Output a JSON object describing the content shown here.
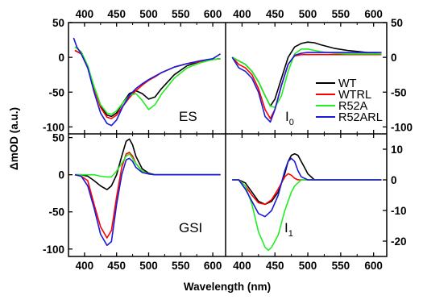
{
  "chart_data": {
    "type": "line",
    "xlabel": "Wavelength (nm)",
    "ylabel": "ΔmOD (a.u.)",
    "xlim": [
      375,
      620
    ],
    "x_ticks": [
      400,
      450,
      500,
      550,
      600
    ],
    "legend": {
      "placement": "inside panel I0, right",
      "entries": [
        "WT",
        "WTRL",
        "R52A",
        "R52ARL"
      ]
    },
    "series_colors": {
      "WT": "#000000",
      "WTRL": "#ff0000",
      "R52A": "#22ee22",
      "R52ARL": "#1a1ad8"
    },
    "panels": [
      {
        "id": "ES",
        "label": "ES",
        "position": "top-left",
        "ylim": [
          -110,
          50
        ],
        "y_ticks": [
          -100,
          -50,
          0,
          50
        ],
        "y_axis_side": "left",
        "series": [
          {
            "name": "WT",
            "x": [
              385,
              395,
              405,
              415,
              425,
              435,
              442,
              450,
              460,
              470,
              480,
              490,
              500,
              510,
              520,
              540,
              560,
              580,
              600,
              612
            ],
            "y": [
              10,
              5,
              -15,
              -45,
              -70,
              -83,
              -85,
              -80,
              -65,
              -52,
              -48,
              -52,
              -60,
              -57,
              -45,
              -25,
              -12,
              -6,
              -3,
              -2
            ]
          },
          {
            "name": "WTRL",
            "x": [
              385,
              395,
              405,
              415,
              425,
              435,
              442,
              450,
              460,
              470,
              480,
              490,
              500,
              510,
              520,
              540,
              560,
              580,
              600,
              612
            ],
            "y": [
              10,
              5,
              -15,
              -45,
              -72,
              -86,
              -88,
              -83,
              -70,
              -58,
              -48,
              -40,
              -33,
              -28,
              -22,
              -14,
              -9,
              -6,
              -3,
              -2
            ]
          },
          {
            "name": "R52A",
            "x": [
              385,
              395,
              405,
              415,
              425,
              435,
              442,
              450,
              460,
              470,
              480,
              490,
              500,
              510,
              520,
              540,
              560,
              580,
              600,
              612
            ],
            "y": [
              15,
              8,
              -12,
              -42,
              -68,
              -80,
              -82,
              -77,
              -65,
              -55,
              -52,
              -62,
              -75,
              -68,
              -53,
              -30,
              -15,
              -8,
              -3,
              -2
            ]
          },
          {
            "name": "R52ARL",
            "x": [
              383,
              388,
              395,
              405,
              415,
              425,
              435,
              442,
              450,
              460,
              470,
              480,
              490,
              500,
              510,
              520,
              540,
              560,
              580,
              600,
              612
            ],
            "y": [
              28,
              15,
              5,
              -15,
              -50,
              -80,
              -95,
              -98,
              -90,
              -70,
              -55,
              -45,
              -38,
              -32,
              -27,
              -22,
              -14,
              -9,
              -5,
              -2,
              5
            ]
          }
        ]
      },
      {
        "id": "I0",
        "label": "I0",
        "label_main": "I",
        "label_sub": "0",
        "position": "top-right",
        "ylim": [
          -110,
          50
        ],
        "y_ticks": [
          -100,
          -50,
          0,
          50
        ],
        "y_axis_side": "right",
        "series": [
          {
            "name": "WT",
            "x": [
              385,
              395,
              405,
              415,
              425,
              435,
              443,
              450,
              460,
              470,
              480,
              490,
              500,
              510,
              520,
              540,
              560,
              580,
              600,
              612
            ],
            "y": [
              0,
              -5,
              -10,
              -20,
              -35,
              -55,
              -70,
              -60,
              -30,
              0,
              15,
              20,
              22,
              21,
              18,
              13,
              10,
              8,
              6,
              5
            ]
          },
          {
            "name": "WTRL",
            "x": [
              385,
              395,
              405,
              415,
              425,
              435,
              443,
              450,
              460,
              470,
              480,
              490,
              500,
              510,
              520,
              540,
              560,
              580,
              600,
              612
            ],
            "y": [
              0,
              -10,
              -15,
              -25,
              -45,
              -75,
              -88,
              -75,
              -40,
              -10,
              2,
              4,
              4,
              4,
              4,
              4,
              4,
              4,
              4,
              4
            ]
          },
          {
            "name": "R52A",
            "x": [
              385,
              395,
              405,
              415,
              425,
              435,
              443,
              450,
              460,
              470,
              480,
              490,
              500,
              510,
              520,
              540,
              560,
              580,
              600,
              612
            ],
            "y": [
              0,
              -5,
              -10,
              -20,
              -35,
              -55,
              -70,
              -72,
              -55,
              -20,
              5,
              12,
              12,
              10,
              8,
              6,
              5,
              5,
              5,
              5
            ]
          },
          {
            "name": "R52ARL",
            "x": [
              385,
              395,
              405,
              415,
              425,
              435,
              443,
              450,
              460,
              470,
              480,
              490,
              500,
              510,
              520,
              540,
              560,
              580,
              600,
              612
            ],
            "y": [
              0,
              -15,
              -20,
              -30,
              -50,
              -85,
              -93,
              -75,
              -40,
              -10,
              3,
              6,
              7,
              7,
              7,
              7,
              7,
              7,
              7,
              7
            ]
          }
        ]
      },
      {
        "id": "GSI",
        "label": "GSI",
        "position": "bottom-left",
        "ylim": [
          -110,
          55
        ],
        "y_ticks": [
          -100,
          -50,
          0,
          50
        ],
        "y_axis_side": "left",
        "series": [
          {
            "name": "WT",
            "x": [
              385,
              395,
              405,
              415,
              425,
              435,
              442,
              450,
              458,
              465,
              470,
              475,
              480,
              490,
              500,
              510,
              520,
              540,
              560,
              580,
              600,
              612
            ],
            "y": [
              0,
              0,
              -2,
              -8,
              -15,
              -20,
              -15,
              0,
              25,
              45,
              48,
              40,
              25,
              8,
              2,
              0,
              0,
              0,
              0,
              0,
              0,
              0
            ]
          },
          {
            "name": "WTRL",
            "x": [
              385,
              395,
              405,
              415,
              425,
              435,
              442,
              450,
              458,
              465,
              470,
              475,
              480,
              490,
              500,
              510,
              520,
              540,
              560,
              580,
              600,
              612
            ],
            "y": [
              0,
              -2,
              -8,
              -40,
              -70,
              -85,
              -75,
              -30,
              10,
              28,
              30,
              25,
              15,
              5,
              1,
              0,
              0,
              0,
              0,
              0,
              0,
              0
            ]
          },
          {
            "name": "R52A",
            "x": [
              385,
              395,
              405,
              415,
              425,
              435,
              442,
              450,
              458,
              465,
              470,
              475,
              480,
              490,
              500,
              510,
              520,
              540,
              560,
              580,
              600,
              612
            ],
            "y": [
              0,
              0,
              0,
              0,
              -2,
              -3,
              -3,
              5,
              15,
              25,
              28,
              22,
              15,
              5,
              1,
              0,
              0,
              0,
              0,
              0,
              0,
              0
            ]
          },
          {
            "name": "R52ARL",
            "x": [
              385,
              395,
              405,
              415,
              425,
              435,
              442,
              450,
              458,
              465,
              470,
              475,
              480,
              490,
              500,
              510,
              520,
              540,
              560,
              580,
              600,
              612
            ],
            "y": [
              0,
              -2,
              -15,
              -45,
              -80,
              -95,
              -90,
              -40,
              0,
              20,
              22,
              18,
              10,
              3,
              1,
              0,
              0,
              0,
              0,
              0,
              0,
              0
            ]
          }
        ]
      },
      {
        "id": "I1",
        "label": "I1",
        "label_main": "I",
        "label_sub": "1",
        "position": "bottom-right",
        "ylim": [
          -25,
          15
        ],
        "y_ticks": [
          -20,
          -10,
          0,
          10
        ],
        "y_axis_side": "right",
        "series": [
          {
            "name": "WT",
            "x": [
              385,
              395,
              405,
              415,
              425,
              435,
              445,
              455,
              465,
              470,
              475,
              480,
              485,
              490,
              495,
              500,
              510,
              520,
              540,
              560,
              580,
              600,
              612
            ],
            "y": [
              0,
              0,
              -1,
              -4,
              -7,
              -8,
              -7,
              -4,
              2,
              6,
              8,
              8.5,
              8,
              6,
              4,
              2,
              0,
              0,
              0,
              0,
              0,
              0,
              0
            ]
          },
          {
            "name": "WTRL",
            "x": [
              385,
              395,
              405,
              415,
              425,
              435,
              445,
              455,
              465,
              470,
              475,
              480,
              485,
              490,
              495,
              500,
              510,
              520,
              540,
              560,
              580,
              600,
              612
            ],
            "y": [
              0,
              0,
              -2,
              -5,
              -7.5,
              -8,
              -6.5,
              -3,
              1,
              2,
              1.5,
              0.5,
              0,
              0,
              0,
              0,
              0,
              0,
              0,
              0,
              0,
              0,
              0
            ]
          },
          {
            "name": "R52A",
            "x": [
              385,
              395,
              405,
              415,
              425,
              435,
              440,
              445,
              455,
              465,
              475,
              480,
              485,
              490,
              495,
              500,
              510,
              520,
              540,
              560,
              580,
              600,
              612
            ],
            "y": [
              0,
              0,
              -2,
              -8,
              -17,
              -22,
              -23,
              -22,
              -18,
              -10,
              -4,
              -2,
              -1,
              0,
              0,
              0,
              0,
              0,
              0,
              0,
              0,
              0,
              0
            ]
          },
          {
            "name": "R52ARL",
            "x": [
              385,
              395,
              405,
              415,
              425,
              435,
              440,
              445,
              455,
              465,
              470,
              475,
              480,
              485,
              490,
              500,
              510,
              520,
              540,
              560,
              580,
              600,
              612
            ],
            "y": [
              0,
              0,
              -3,
              -7,
              -11,
              -12,
              -11,
              -10,
              -5,
              3,
              6,
              7,
              6,
              3,
              1,
              0,
              0,
              0,
              0,
              0,
              0,
              0,
              0
            ]
          }
        ]
      }
    ]
  }
}
